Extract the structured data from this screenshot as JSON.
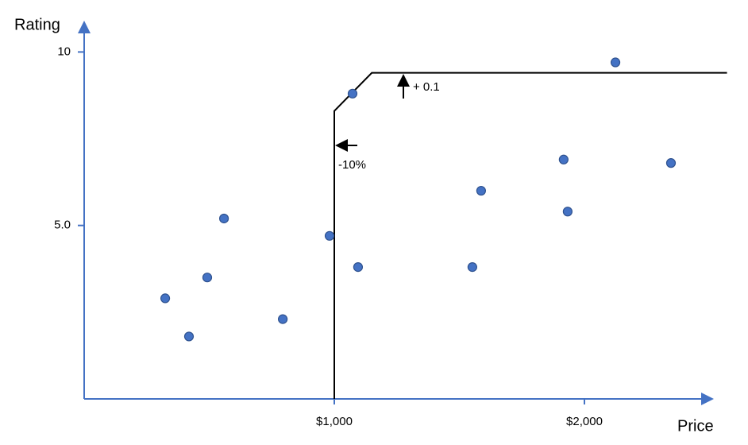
{
  "chart_data": {
    "type": "scatter",
    "x_label": "Price",
    "y_label": "Rating",
    "x": [
      324,
      419,
      492,
      559,
      794,
      981,
      1073,
      1095,
      1552,
      1587,
      1917,
      1933,
      2124,
      2346
    ],
    "values": [
      2.9,
      1.8,
      3.5,
      5.2,
      2.3,
      4.7,
      8.8,
      3.8,
      3.8,
      6.0,
      6.9,
      5.4,
      9.7,
      6.8
    ],
    "color": "#4472c4",
    "xlim": [
      0,
      2500
    ],
    "ylim": [
      0,
      10.8
    ],
    "xticks": [
      {
        "value": 1000,
        "label": "$1,000"
      },
      {
        "value": 2000,
        "label": "$2,000"
      }
    ],
    "yticks": [
      {
        "value": 5,
        "label": "5.0"
      },
      10
    ],
    "frontier": {
      "x": [
        1000,
        1000,
        1150,
        2570
      ],
      "values": [
        0,
        8.3,
        9.4,
        9.4
      ]
    },
    "annotations": [
      "+ 0.1",
      "-10%"
    ]
  }
}
